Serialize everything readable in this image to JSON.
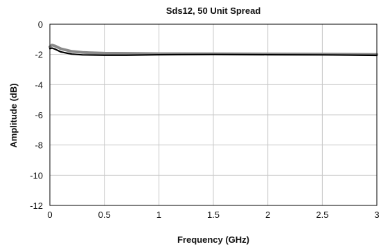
{
  "chart_data": {
    "type": "line",
    "title": "Sds12, 50 Unit Spread",
    "xlabel": "Frequency (GHz)",
    "ylabel": "Amplitude (dB)",
    "xlim": [
      0,
      3
    ],
    "ylim": [
      -12,
      0
    ],
    "xticks": [
      0,
      0.5,
      1,
      1.5,
      2,
      2.5,
      3
    ],
    "xtick_labels": [
      "0",
      "0.5",
      "1",
      "1.5",
      "2",
      "2.5",
      "3"
    ],
    "yticks": [
      0,
      -2,
      -4,
      -6,
      -8,
      -10,
      -12
    ],
    "ytick_labels": [
      "0",
      "-2",
      "-4",
      "-6",
      "-8",
      "-10",
      "-12"
    ],
    "grid": true,
    "legend": "none",
    "series": [
      {
        "color": "#8a8a8a",
        "x": [
          0,
          0.02,
          0.05,
          0.1,
          0.2,
          0.3,
          0.5,
          0.7,
          1.0,
          1.5,
          2.0,
          2.5,
          3.0
        ],
        "y": [
          -1.5,
          -1.38,
          -1.45,
          -1.62,
          -1.8,
          -1.87,
          -1.92,
          -1.93,
          -1.95,
          -1.96,
          -1.97,
          -1.98,
          -2.0
        ]
      },
      {
        "color": "#000000",
        "x": [
          0,
          0.02,
          0.05,
          0.1,
          0.2,
          0.3,
          0.5,
          0.7,
          1.0,
          1.5,
          2.0,
          2.5,
          3.0
        ],
        "y": [
          -1.62,
          -1.58,
          -1.66,
          -1.83,
          -1.98,
          -2.03,
          -2.05,
          -2.05,
          -2.02,
          -2.01,
          -2.02,
          -2.03,
          -2.06
        ]
      }
    ]
  }
}
